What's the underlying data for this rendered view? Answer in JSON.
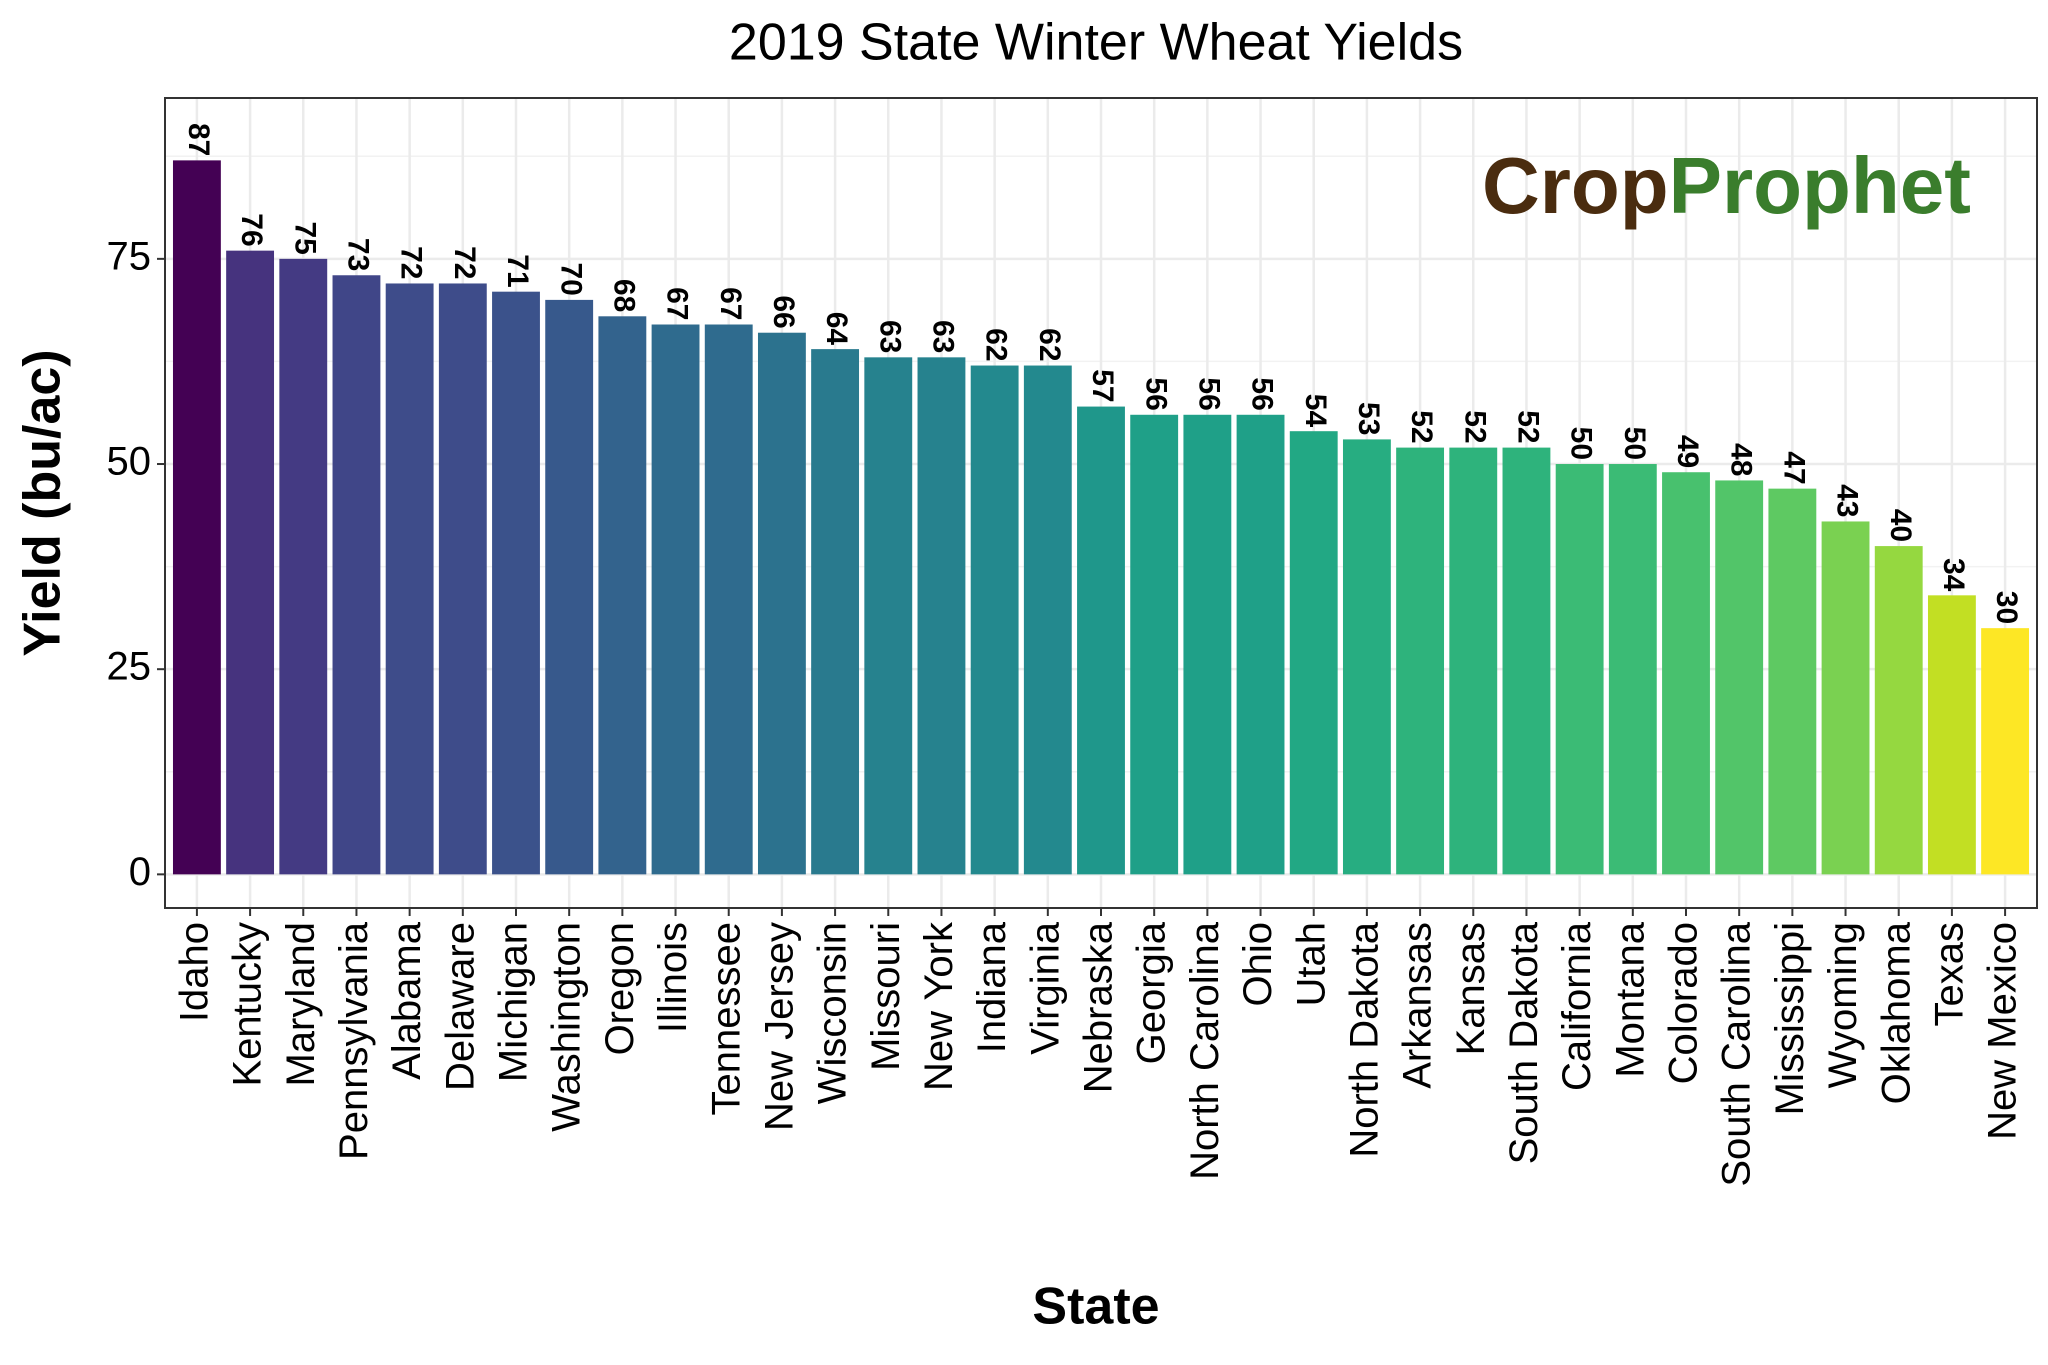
{
  "chart_data": {
    "type": "bar",
    "title": "2019 State Winter Wheat Yields",
    "x_label": "State",
    "y_label": "Yield (bu/ac)",
    "annotations": [
      "Crop",
      "Prophet"
    ],
    "categories": [
      "Idaho",
      "Kentucky",
      "Maryland",
      "Pennsylvania",
      "Alabama",
      "Delaware",
      "Michigan",
      "Washington",
      "Oregon",
      "Illinois",
      "Tennessee",
      "New Jersey",
      "Wisconsin",
      "Missouri",
      "New York",
      "Indiana",
      "Virginia",
      "Nebraska",
      "Georgia",
      "North Carolina",
      "Ohio",
      "Utah",
      "North Dakota",
      "Arkansas",
      "Kansas",
      "South Dakota",
      "California",
      "Montana",
      "Colorado",
      "South Carolina",
      "Mississippi",
      "Wyoming",
      "Oklahoma",
      "Texas",
      "New Mexico"
    ],
    "values": [
      87,
      76,
      75,
      73,
      72,
      72,
      71,
      70,
      68,
      67,
      67,
      66,
      64,
      63,
      63,
      62,
      62,
      57,
      56,
      56,
      56,
      54,
      53,
      52,
      52,
      52,
      50,
      50,
      49,
      48,
      47,
      43,
      40,
      34,
      30
    ],
    "colors": [
      "#440154",
      "#46337E",
      "#443A83",
      "#404688",
      "#3E4C8A",
      "#3E4C8A",
      "#3B528B",
      "#37598C",
      "#33638D",
      "#2F6B8E",
      "#2F6B8E",
      "#2C728E",
      "#297A8E",
      "#26828E",
      "#26828E",
      "#23898E",
      "#23898E",
      "#1F978B",
      "#1FA088",
      "#1FA088",
      "#1FA088",
      "#22A884",
      "#27AD81",
      "#2EB37C",
      "#2EB37C",
      "#2EB37C",
      "#3BBB75",
      "#3BBB75",
      "#48C16E",
      "#52C569",
      "#5EC962",
      "#7AD151",
      "#95D840",
      "#C2DF23",
      "#FDE725"
    ],
    "ylim": [
      -4.1,
      94.6
    ],
    "yticks": [
      0,
      25,
      50,
      75
    ],
    "grid": true
  }
}
